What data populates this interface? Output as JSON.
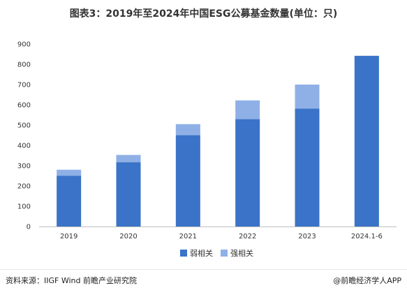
{
  "title": "图表3：2019年至2024年中国ESG公募基金数量(单位：只)",
  "source": "资料来源：IIGF Wind 前瞻产业研究院",
  "credit": "@前瞻经济学人APP",
  "chart_data": {
    "type": "bar",
    "stacked": true,
    "categories": [
      "2019",
      "2020",
      "2021",
      "2022",
      "2023",
      "2024.1-6"
    ],
    "series": [
      {
        "name": "弱相关",
        "values": [
          250,
          317,
          450,
          530,
          582,
          842
        ],
        "color": "#3a73c8"
      },
      {
        "name": "强相关",
        "values": [
          30,
          36,
          55,
          92,
          118,
          0
        ],
        "color": "#8fb0e6"
      }
    ],
    "y_ticks": [
      0,
      100,
      200,
      300,
      400,
      500,
      600,
      700,
      800,
      900
    ],
    "ylim": [
      0,
      900
    ],
    "legend_position": "bottom-center",
    "grid": false
  }
}
